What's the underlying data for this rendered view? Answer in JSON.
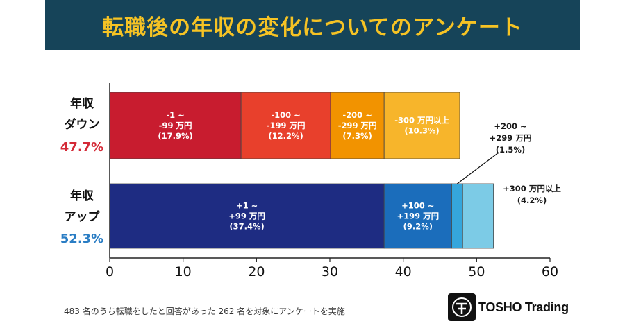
{
  "banner": {
    "title": "転職後の年収の変化についてのアンケート"
  },
  "chart_data": {
    "type": "bar",
    "orientation": "horizontal",
    "stacked": true,
    "xlim": [
      0,
      60
    ],
    "xticks": [
      0,
      10,
      20,
      30,
      40,
      50,
      60
    ],
    "grid": false,
    "categories": [
      {
        "label_lines": [
          "年収",
          "ダウン"
        ],
        "total_label": "47.7%",
        "total_color": "#d42a37"
      },
      {
        "label_lines": [
          "年収",
          "アップ"
        ],
        "total_label": "52.3%",
        "total_color": "#2a7dc4"
      }
    ],
    "bars": [
      {
        "category": "年収ダウン",
        "segments": [
          {
            "value": 17.9,
            "color": "#c81c2f",
            "text_color": "#ffffff",
            "label_lines": [
              "-1 ~",
              "-99 万円",
              "(17.9%)"
            ],
            "label_position": "inside"
          },
          {
            "value": 12.2,
            "color": "#e8402c",
            "text_color": "#ffffff",
            "label_lines": [
              "-100 ~",
              "-199 万円",
              "(12.2%)"
            ],
            "label_position": "inside"
          },
          {
            "value": 7.3,
            "color": "#f29300",
            "text_color": "#ffffff",
            "label_lines": [
              "-200 ~",
              "-299 万円",
              "(7.3%)"
            ],
            "label_position": "inside"
          },
          {
            "value": 10.3,
            "color": "#f7b52b",
            "text_color": "#ffffff",
            "label_lines": [
              "-300 万円以上",
              "(10.3%)"
            ],
            "label_position": "inside"
          }
        ]
      },
      {
        "category": "年収アップ",
        "segments": [
          {
            "value": 37.4,
            "color": "#1e2c82",
            "text_color": "#ffffff",
            "label_lines": [
              "+1 ~",
              "+99 万円",
              "(37.4%)"
            ],
            "label_position": "inside"
          },
          {
            "value": 9.2,
            "color": "#1b6dbb",
            "text_color": "#ffffff",
            "label_lines": [
              "+100 ~",
              "+199 万円",
              "(9.2%)"
            ],
            "label_position": "inside"
          },
          {
            "value": 1.5,
            "color": "#35a6dc",
            "text_color": "#1a1a1a",
            "label_lines": [
              "+200 ~",
              "+299 万円",
              "(1.5%)"
            ],
            "label_position": "callout-above"
          },
          {
            "value": 4.2,
            "color": "#7ccbe6",
            "text_color": "#1a1a1a",
            "label_lines": [
              "+300 万円以上",
              "(4.2%)"
            ],
            "label_position": "callout-right"
          }
        ]
      }
    ]
  },
  "footnote": "483 名のうち転職をしたと回答があった 262 名を対象にアンケートを実施",
  "logo": {
    "text": "TOSHO Trading",
    "icon": "tosho-seal-icon"
  }
}
